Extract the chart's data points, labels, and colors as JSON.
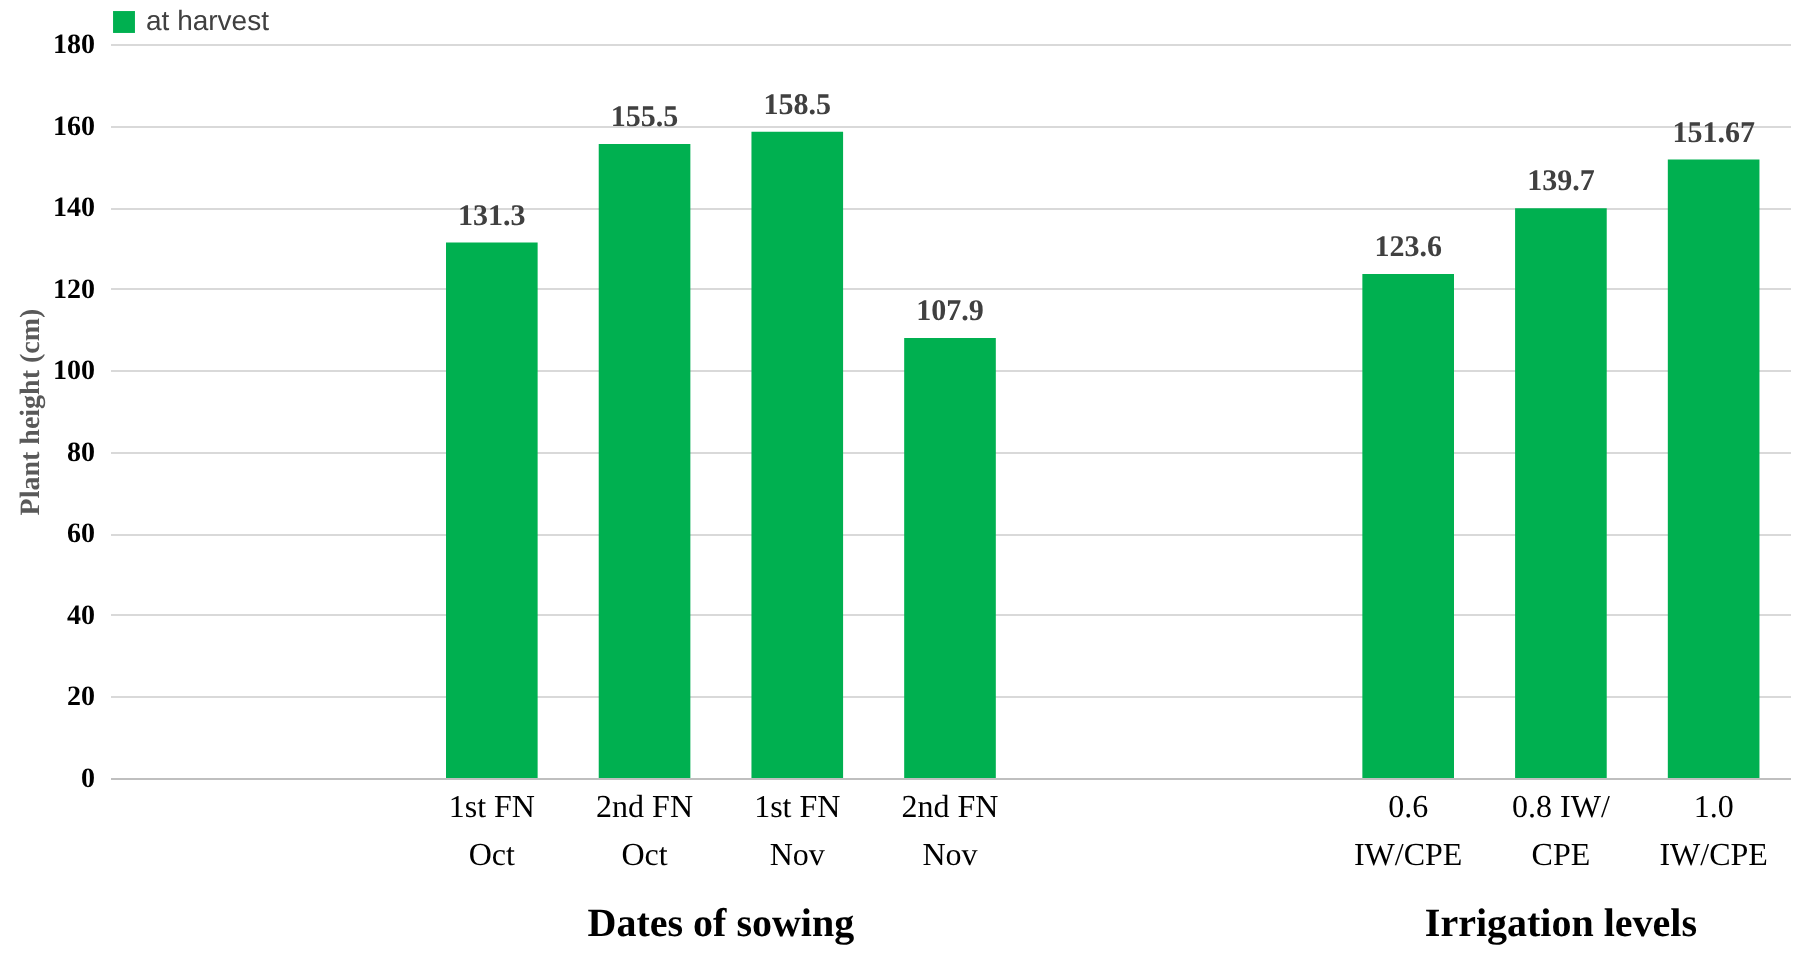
{
  "chart_data": {
    "type": "bar",
    "ylabel": "Plant height (cm)",
    "categories": [
      null,
      null,
      "1st FN\nOct",
      "2nd FN\nOct",
      "1st FN\nNov",
      "2nd FN\nNov",
      null,
      null,
      "0.6\nIW/CPE",
      "0.8 IW/\nCPE",
      "1.0\nIW/CPE"
    ],
    "series": [
      {
        "name": "at harvest",
        "color": "#00b050",
        "values": [
          null,
          null,
          131.3,
          155.5,
          158.5,
          107.9,
          null,
          null,
          123.6,
          139.7,
          151.67
        ]
      }
    ],
    "ylim": [
      0,
      180
    ],
    "yticks": [
      0,
      20,
      40,
      60,
      80,
      100,
      120,
      140,
      160,
      180
    ],
    "grid": "y",
    "legend": "top",
    "data_labels": true,
    "annotations": [
      "Dates of sowing",
      "Irrigation levels"
    ]
  }
}
